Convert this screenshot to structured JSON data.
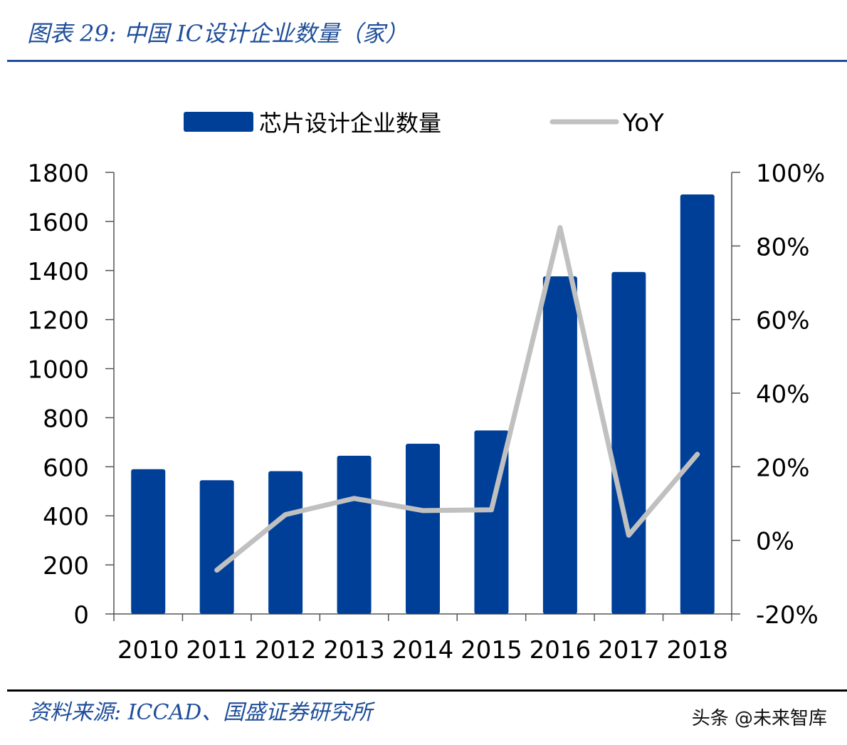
{
  "header": {
    "title": "图表 29:  中国 IC设计企业数量（家）"
  },
  "footer": {
    "source": "资料来源:  ICCAD、国盛证券研究所",
    "watermark": "头条 @未来智库"
  },
  "colors": {
    "bar": "#003f98",
    "line": "#c0c0c0",
    "title": "#1f4e99"
  },
  "chart_data": {
    "type": "bar",
    "title": "中国 IC设计企业数量（家）",
    "categories": [
      "2010",
      "2011",
      "2012",
      "2013",
      "2014",
      "2015",
      "2016",
      "2017",
      "2018"
    ],
    "series": [
      {
        "name": "芯片设计企业数量",
        "type": "bar",
        "axis": "left",
        "values": [
          590,
          545,
          582,
          645,
          694,
          748,
          1376,
          1394,
          1710
        ]
      },
      {
        "name": "YoY",
        "type": "line",
        "axis": "right",
        "values": [
          null,
          -8.1,
          7.0,
          11.4,
          8.1,
          8.3,
          85.0,
          1.4,
          23.4
        ]
      }
    ],
    "left_axis": {
      "ylim": [
        0,
        1800
      ],
      "ticks": [
        "0",
        "200",
        "400",
        "600",
        "800",
        "1000",
        "1200",
        "1400",
        "1600",
        "1800"
      ]
    },
    "right_axis": {
      "ylim": [
        -20,
        100
      ],
      "ticks": [
        "-20%",
        "0%",
        "20%",
        "40%",
        "60%",
        "80%",
        "100%"
      ]
    },
    "legend": {
      "position": "top",
      "entries": [
        "芯片设计企业数量",
        "YoY"
      ]
    },
    "grid": false
  }
}
